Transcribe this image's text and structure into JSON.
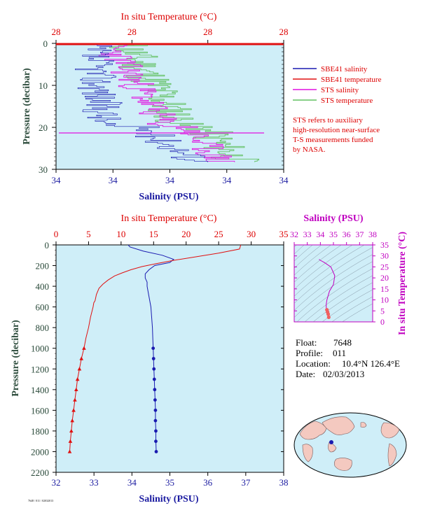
{
  "colors": {
    "panel_bg": "#cfeef8",
    "salinity": "#1a1ab0",
    "temperature": "#e01010",
    "sts_salinity": "#e010e0",
    "sts_temperature": "#60c060",
    "ts_panel": "#c000c0",
    "pressure_axis": "#2a4a3a"
  },
  "top_panel": {
    "temp_axis_label": "In situ Temperature (°C)",
    "temp_ticks": [
      "28",
      "28",
      "28",
      "28"
    ],
    "sal_axis_label": "Salinity (PSU)",
    "sal_ticks": [
      "34",
      "34",
      "34",
      "34",
      "34"
    ],
    "pressure_label": "Pressure (decibar)",
    "pressure_ticks": [
      "0",
      "10",
      "20",
      "30"
    ]
  },
  "legend": [
    {
      "label": "SBE41 salinity",
      "color": "#1a1ab0"
    },
    {
      "label": "SBE41 temperature",
      "color": "#e01010"
    },
    {
      "label": "STS salinity",
      "color": "#e010e0"
    },
    {
      "label": "STS temperature",
      "color": "#60c060"
    }
  ],
  "note": [
    "STS refers to auxiliary",
    "high-resolution near-surface",
    "T-S measurements funded",
    "by NASA."
  ],
  "main_panel": {
    "temp_axis_label": "In situ Temperature (°C)",
    "temp_ticks": [
      "0",
      "5",
      "10",
      "15",
      "20",
      "25",
      "30",
      "35"
    ],
    "sal_axis_label": "Salinity (PSU)",
    "sal_ticks": [
      "32",
      "33",
      "34",
      "35",
      "36",
      "37",
      "38"
    ],
    "pressure_label": "Pressure (decibar)",
    "pressure_ticks": [
      "0",
      "200",
      "400",
      "600",
      "800",
      "1000",
      "1200",
      "1400",
      "1600",
      "1800",
      "2000",
      "2200"
    ]
  },
  "ts_panel": {
    "sal_axis_label": "Salinity (PSU)",
    "sal_ticks": [
      "32",
      "33",
      "34",
      "35",
      "36",
      "37",
      "38"
    ],
    "temp_axis_label": "In situ Temperature (°C)",
    "temp_ticks": [
      "0",
      "5",
      "10",
      "15",
      "20",
      "25",
      "30",
      "35"
    ]
  },
  "info": {
    "float_label": "Float:",
    "float_value": "7648",
    "profile_label": "Profile:",
    "profile_value": "011",
    "location_label": "Location:",
    "location_value": "10.4°N  126.4°E",
    "date_label": "Date:",
    "date_value": "02/03/2013"
  },
  "footer_code": "7648 / 011 / 02032013",
  "chart_data": [
    {
      "type": "line",
      "title": "",
      "xlabel": "Salinity (PSU)",
      "x2label": "In situ Temperature (°C)",
      "ylabel": "Pressure (decibar)",
      "ylim": [
        0,
        2200
      ],
      "xlim": [
        32,
        38
      ],
      "x2lim": [
        0,
        35
      ],
      "series": [
        {
          "name": "Salinity",
          "axis": "salinity",
          "pressure": [
            0,
            20,
            60,
            100,
            140,
            170,
            200,
            240,
            280,
            320,
            360,
            400,
            500,
            600,
            700,
            800,
            900,
            1000,
            1100,
            1200,
            1300,
            1400,
            1500,
            1600,
            1700,
            1800,
            1900,
            2000
          ],
          "values": [
            33.9,
            33.95,
            34.3,
            34.8,
            35.1,
            35.0,
            34.6,
            34.45,
            34.35,
            34.35,
            34.4,
            34.4,
            34.45,
            34.5,
            34.52,
            34.54,
            34.55,
            34.56,
            34.57,
            34.58,
            34.59,
            34.6,
            34.61,
            34.62,
            34.62,
            34.63,
            34.63,
            34.64
          ]
        },
        {
          "name": "Temperature",
          "axis": "temperature",
          "pressure": [
            0,
            40,
            80,
            120,
            150,
            180,
            210,
            240,
            270,
            300,
            340,
            380,
            420,
            480,
            540,
            560,
            600,
            700,
            800,
            900,
            1000,
            1100,
            1200,
            1300,
            1400,
            1500,
            1600,
            1700,
            1800,
            1900,
            2000
          ],
          "values": [
            28.4,
            28.2,
            25.0,
            21.0,
            18.0,
            15.5,
            13.2,
            11.5,
            10.2,
            9.0,
            8.0,
            7.2,
            6.6,
            6.2,
            6.0,
            5.8,
            5.7,
            5.3,
            5.0,
            4.6,
            4.3,
            3.9,
            3.6,
            3.3,
            3.1,
            2.9,
            2.7,
            2.5,
            2.35,
            2.2,
            2.1
          ]
        }
      ]
    },
    {
      "type": "line",
      "title": "",
      "xlabel": "Salinity (PSU)",
      "ylabel": "In situ Temperature (°C)",
      "xlim": [
        32,
        38
      ],
      "ylim": [
        0,
        35
      ],
      "series": [
        {
          "name": "T-S profile",
          "salinity": [
            33.9,
            34.0,
            34.3,
            34.8,
            35.1,
            35.0,
            34.7,
            34.6,
            34.5,
            34.45,
            34.45,
            34.5,
            34.55,
            34.6,
            34.64
          ],
          "temperature": [
            28.4,
            28.0,
            27.0,
            25.0,
            21.0,
            17.0,
            14.0,
            12.0,
            10.0,
            8.0,
            6.5,
            5.5,
            4.5,
            3.5,
            2.1
          ]
        }
      ]
    }
  ]
}
